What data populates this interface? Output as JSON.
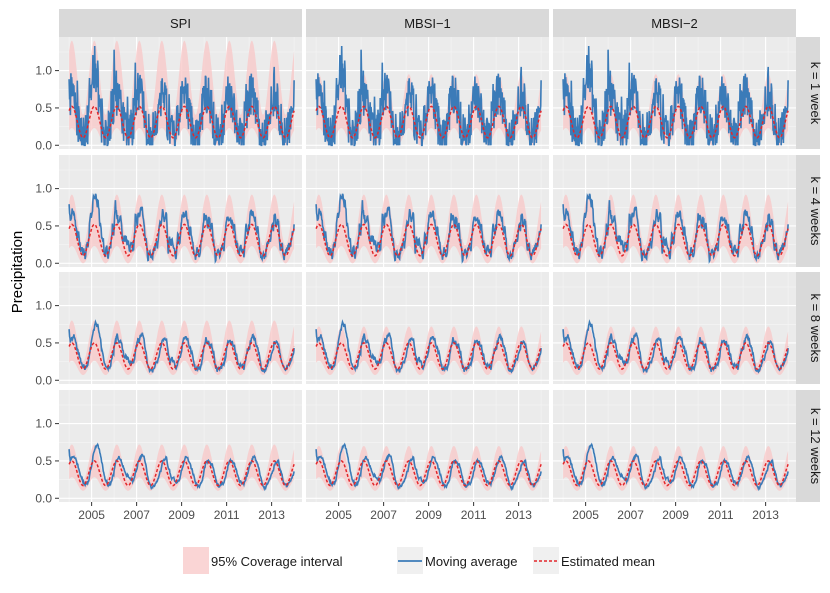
{
  "chart_data": {
    "type": "line",
    "title": "",
    "ylabel": "Precipitation",
    "xlabel": "",
    "xlim": [
      2003.55,
      2014.35
    ],
    "ylim": [
      -0.05,
      1.45
    ],
    "x_ticks": [
      2005,
      2007,
      2009,
      2011,
      2013
    ],
    "x_tick_labels": [
      "2005",
      "2007",
      "2009",
      "2011",
      "2013"
    ],
    "y_ticks": [
      0.0,
      0.5,
      1.0
    ],
    "y_tick_labels": [
      "0.0",
      "0.5",
      "1.0"
    ],
    "columns": [
      "SPI",
      "MBSI−1",
      "MBSI−2"
    ],
    "rows": [
      "k = 1 week",
      "k = 4 weeks",
      "k = 8 weeks",
      "k = 12 weeks"
    ],
    "legend": {
      "position": "bottom",
      "items": [
        {
          "key": "ci",
          "label": "95% Coverage interval"
        },
        {
          "key": "ma",
          "label": "Moving average"
        },
        {
          "key": "mean",
          "label": "Estimated mean"
        }
      ]
    },
    "colors": {
      "panel_bg": "#ebebeb",
      "grid": "#ffffff",
      "strip_bg": "#d9d9d9",
      "ci_fill": "#f8c7c7",
      "moving_average": "#3b7bb8",
      "estimated_mean": "#e3262a"
    },
    "series_model": {
      "x_start": 2004.0,
      "x_end": 2014.0,
      "points_per_year": 52,
      "seasonal_period_years": 1.0,
      "estimated_mean_by_row": [
        {
          "row": "k = 1 week",
          "min": 0.1,
          "max": 0.52
        },
        {
          "row": "k = 4 weeks",
          "min": 0.1,
          "max": 0.52
        },
        {
          "row": "k = 8 weeks",
          "min": 0.15,
          "max": 0.5
        },
        {
          "row": "k = 12 weeks",
          "min": 0.17,
          "max": 0.5
        }
      ],
      "ci_upper_peak_by_row": [
        {
          "row": "k = 1 week",
          "SPI": 1.4,
          "MBSI−1": 0.95,
          "MBSI−2": 0.95
        },
        {
          "row": "k = 4 weeks",
          "SPI": 0.92,
          "MBSI−1": 0.92,
          "MBSI−2": 0.92
        },
        {
          "row": "k = 8 weeks",
          "SPI": 0.8,
          "MBSI−1": 0.72,
          "MBSI−2": 0.72
        },
        {
          "row": "k = 12 weeks",
          "SPI": 0.72,
          "MBSI−1": 0.7,
          "MBSI−2": 0.7
        }
      ],
      "ci_lower_trough_by_row": [
        {
          "row": "k = 1 week",
          "value": 0.0
        },
        {
          "row": "k = 4 weeks",
          "value": 0.0
        },
        {
          "row": "k = 8 weeks",
          "value": 0.07
        },
        {
          "row": "k = 12 weeks",
          "value": 0.1
        }
      ],
      "moving_average_range_by_row": [
        {
          "row": "k = 1 week",
          "min": 0.0,
          "max": 1.33
        },
        {
          "row": "k = 4 weeks",
          "min": 0.0,
          "max": 0.93
        },
        {
          "row": "k = 8 weeks",
          "min": 0.05,
          "max": 0.78
        },
        {
          "row": "k = 12 weeks",
          "min": 0.07,
          "max": 0.72
        }
      ]
    }
  }
}
